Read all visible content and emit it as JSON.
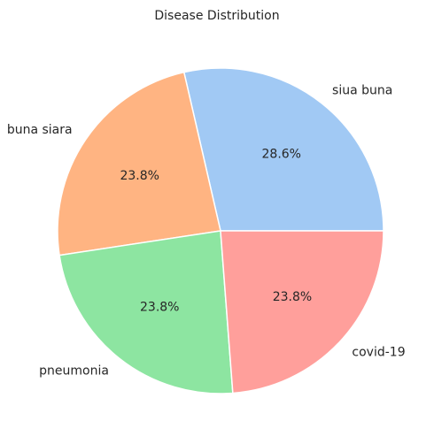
{
  "chart_data": {
    "type": "pie",
    "title": "Disease Distribution",
    "labels": [
      "siua buna",
      "buna siara",
      "pneumonia",
      "covid-19"
    ],
    "values": [
      28.6,
      23.8,
      23.8,
      23.8
    ],
    "value_labels": [
      "28.6%",
      "23.8%",
      "23.8%",
      "23.8%"
    ],
    "colors": [
      "#a1c9f4",
      "#ffb482",
      "#8de5a1",
      "#ff9f9b"
    ],
    "start_angle_deg": 0,
    "direction": "counterclockwise",
    "legend": "none"
  }
}
